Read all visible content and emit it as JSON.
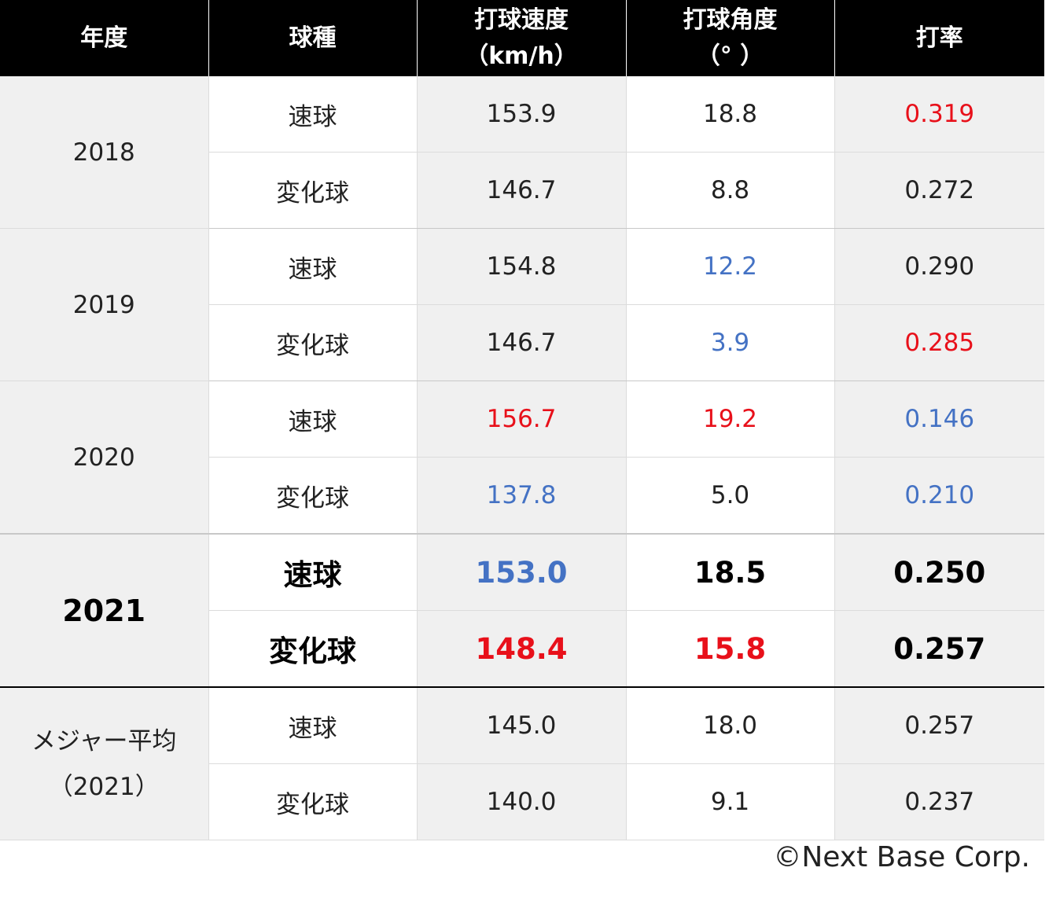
{
  "headers": {
    "year": "年度",
    "pitch": "球種",
    "speed_line1": "打球速度",
    "speed_line2": "（km/h）",
    "angle_line1": "打球角度",
    "angle_line2": "（°  ）",
    "avg": "打率"
  },
  "colors": {
    "header_bg": "#000000",
    "header_text": "#ffffff",
    "shaded_cell": "#f0f0f0",
    "highlight_red": "#e8101a",
    "highlight_blue": "#4472c4"
  },
  "rows": [
    {
      "year": "2018",
      "pitch": "速球",
      "speed": "153.9",
      "angle": "18.8",
      "avg": "0.319"
    },
    {
      "pitch": "変化球",
      "speed": "146.7",
      "angle": "8.8",
      "avg": "0.272"
    },
    {
      "year": "2019",
      "pitch": "速球",
      "speed": "154.8",
      "angle": "12.2",
      "avg": "0.290"
    },
    {
      "pitch": "変化球",
      "speed": "146.7",
      "angle": "3.9",
      "avg": "0.285"
    },
    {
      "year": "2020",
      "pitch": "速球",
      "speed": "156.7",
      "angle": "19.2",
      "avg": "0.146"
    },
    {
      "pitch": "変化球",
      "speed": "137.8",
      "angle": "5.0",
      "avg": "0.210"
    },
    {
      "year": "2021",
      "pitch": "速球",
      "speed": "153.0",
      "angle": "18.5",
      "avg": "0.250"
    },
    {
      "pitch": "変化球",
      "speed": "148.4",
      "angle": "15.8",
      "avg": "0.257"
    },
    {
      "year_line1": "メジャー平均",
      "year_line2": "（2021）",
      "pitch": "速球",
      "speed": "145.0",
      "angle": "18.0",
      "avg": "0.257"
    },
    {
      "pitch": "変化球",
      "speed": "140.0",
      "angle": "9.1",
      "avg": "0.237"
    }
  ],
  "copyright": "©Next Base Corp."
}
